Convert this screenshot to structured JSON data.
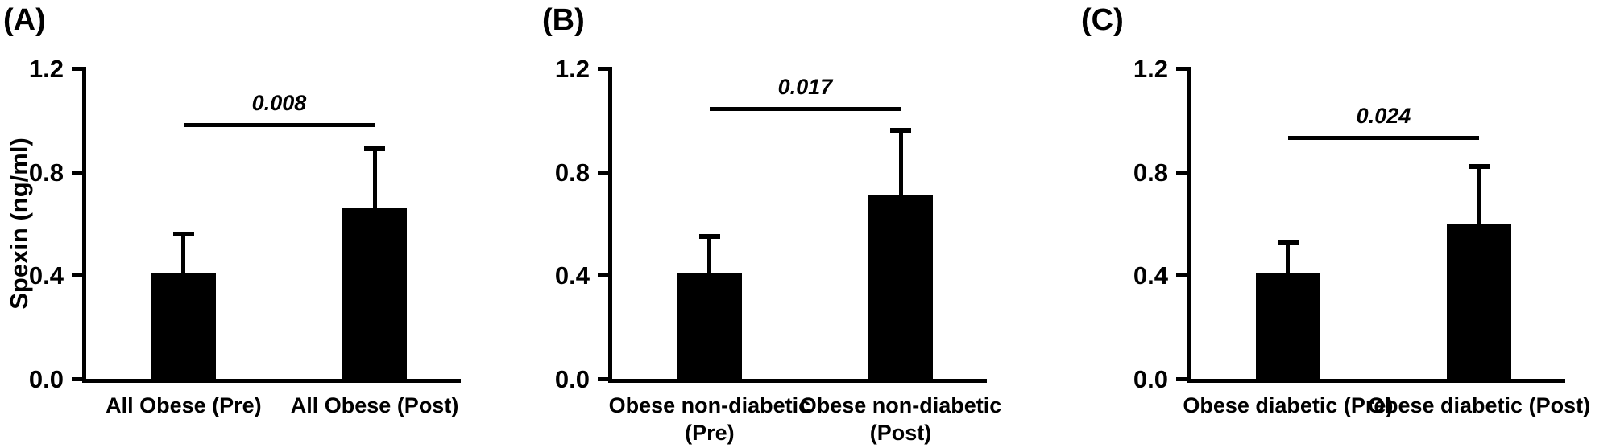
{
  "figure_colors": {
    "background": "#ffffff",
    "bar_color": "#000000",
    "text_color": "#000000"
  },
  "chart_data": [
    {
      "type": "bar",
      "label": "(A)",
      "ylabel": "Spexin (ng/ml)",
      "categories": [
        "All Obese (Pre)",
        "All Obese (Post)"
      ],
      "values": [
        0.41,
        0.66
      ],
      "errors": [
        0.15,
        0.23
      ],
      "p_value": "0.008",
      "bracket_y": 0.99,
      "yticks": [
        0.0,
        0.4,
        0.8,
        1.2
      ],
      "ylim": [
        0,
        1.2
      ],
      "grid": "off",
      "legend": "none"
    },
    {
      "type": "bar",
      "label": "(B)",
      "ylabel": "",
      "categories": [
        "Obese non-diabetic\n(Pre)",
        "Obese non-diabetic\n(Post)"
      ],
      "values": [
        0.41,
        0.71
      ],
      "errors": [
        0.14,
        0.25
      ],
      "p_value": "0.017",
      "bracket_y": 1.05,
      "yticks": [
        0.0,
        0.4,
        0.8,
        1.2
      ],
      "ylim": [
        0,
        1.2
      ],
      "grid": "off",
      "legend": "none"
    },
    {
      "type": "bar",
      "label": "(C)",
      "ylabel": "",
      "categories": [
        "Obese diabetic (Pre)",
        "Obese diabetic (Post)"
      ],
      "values": [
        0.41,
        0.6
      ],
      "errors": [
        0.12,
        0.22
      ],
      "p_value": "0.024",
      "bracket_y": 0.94,
      "yticks": [
        0.0,
        0.4,
        0.8,
        1.2
      ],
      "ylim": [
        0,
        1.2
      ],
      "grid": "off",
      "legend": "none"
    }
  ]
}
